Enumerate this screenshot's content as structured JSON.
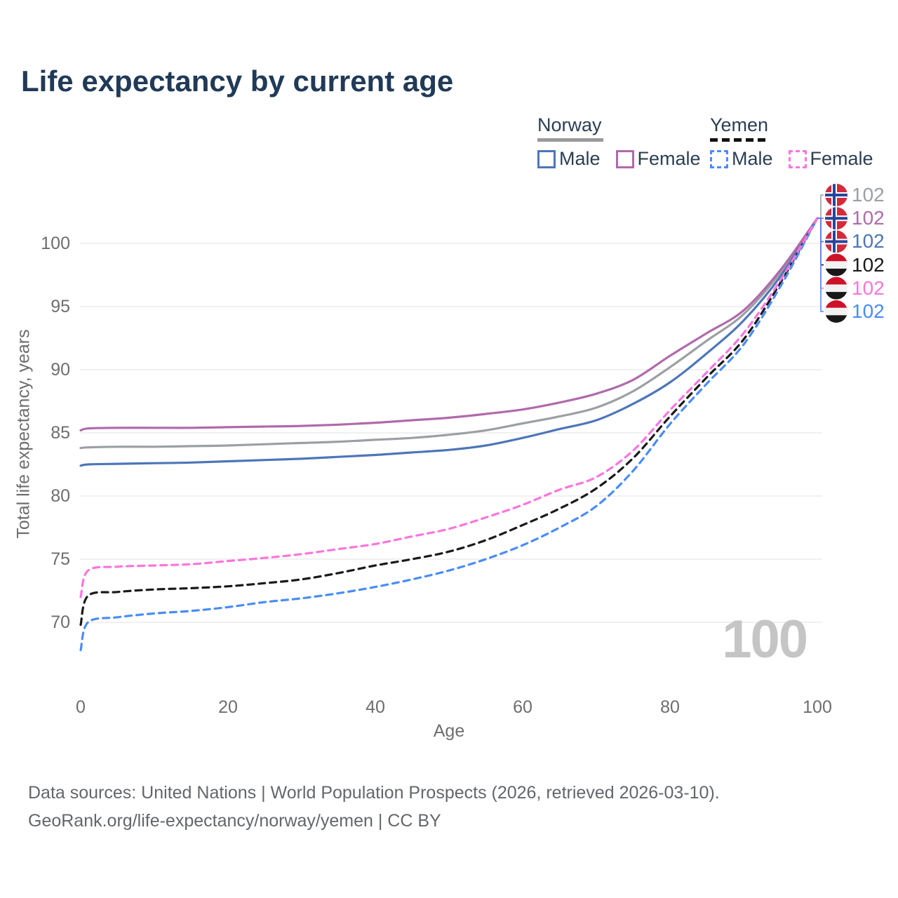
{
  "title": "Life expectancy by current age",
  "watermark": "100",
  "legend": {
    "groups": [
      {
        "name": "Norway",
        "style": "solid",
        "items": [
          {
            "label": "Male",
            "color": "#4d76b8",
            "dashed": false
          },
          {
            "label": "Female",
            "color": "#b06aab",
            "dashed": false
          }
        ]
      },
      {
        "name": "Yemen",
        "style": "dashed",
        "items": [
          {
            "label": "Male",
            "color": "#4a8cf7",
            "dashed": true
          },
          {
            "label": "Female",
            "color": "#fc75dc",
            "dashed": true
          }
        ]
      }
    ]
  },
  "sources": {
    "line1": "Data sources: United Nations | World Population Prospects (2026, retrieved 2026-03-10).",
    "line2": "GeoRank.org/life-expectancy/norway/yemen | CC BY"
  },
  "colors": {
    "title_text": "#203a57",
    "axis_text": "#6e6e6e",
    "gridline": "#ebebeb",
    "watermark": "#c5c5c5",
    "norway_flag_red": "#d32b3a",
    "norway_flag_blue": "#27469b",
    "yemen_flag_red": "#ce1126",
    "yemen_flag_white": "#f2f2f2",
    "yemen_flag_black": "#181818"
  },
  "chart_data": {
    "type": "line",
    "title": "Life expectancy by current age",
    "xlabel": "Age",
    "ylabel": "Total life expectancy, years",
    "xlim": [
      0,
      100
    ],
    "ylim": [
      67,
      103
    ],
    "xticks": [
      0,
      20,
      40,
      60,
      80,
      100
    ],
    "yticks": [
      70,
      75,
      80,
      85,
      90,
      95,
      100
    ],
    "grid": "horizontal-only",
    "legend_position": "top-right",
    "series": [
      {
        "name": "Norway – Total",
        "key": "norway-total",
        "color": "#9c9fa3",
        "dashed": false,
        "points": [
          [
            0,
            83.8
          ],
          [
            1,
            83.85
          ],
          [
            5,
            83.9
          ],
          [
            10,
            83.9
          ],
          [
            15,
            83.95
          ],
          [
            20,
            84.0
          ],
          [
            25,
            84.1
          ],
          [
            30,
            84.2
          ],
          [
            35,
            84.3
          ],
          [
            40,
            84.45
          ],
          [
            45,
            84.6
          ],
          [
            50,
            84.85
          ],
          [
            55,
            85.2
          ],
          [
            60,
            85.75
          ],
          [
            65,
            86.3
          ],
          [
            70,
            87.0
          ],
          [
            75,
            88.3
          ],
          [
            80,
            90.2
          ],
          [
            85,
            92.3
          ],
          [
            90,
            94.4
          ],
          [
            95,
            97.7
          ],
          [
            100,
            102
          ]
        ]
      },
      {
        "name": "Norway – Male",
        "key": "norway-male",
        "color": "#4d76b8",
        "dashed": false,
        "points": [
          [
            0,
            82.4
          ],
          [
            1,
            82.5
          ],
          [
            5,
            82.55
          ],
          [
            10,
            82.6
          ],
          [
            15,
            82.65
          ],
          [
            20,
            82.75
          ],
          [
            25,
            82.85
          ],
          [
            30,
            82.95
          ],
          [
            35,
            83.1
          ],
          [
            40,
            83.25
          ],
          [
            45,
            83.45
          ],
          [
            50,
            83.65
          ],
          [
            55,
            84.0
          ],
          [
            60,
            84.6
          ],
          [
            65,
            85.3
          ],
          [
            70,
            86.0
          ],
          [
            75,
            87.3
          ],
          [
            80,
            89.0
          ],
          [
            85,
            91.3
          ],
          [
            90,
            93.9
          ],
          [
            95,
            97.4
          ],
          [
            100,
            102
          ]
        ]
      },
      {
        "name": "Norway – Female",
        "key": "norway-female",
        "color": "#b06aab",
        "dashed": false,
        "points": [
          [
            0,
            85.2
          ],
          [
            1,
            85.35
          ],
          [
            5,
            85.4
          ],
          [
            10,
            85.4
          ],
          [
            15,
            85.4
          ],
          [
            20,
            85.45
          ],
          [
            25,
            85.5
          ],
          [
            30,
            85.55
          ],
          [
            35,
            85.65
          ],
          [
            40,
            85.8
          ],
          [
            45,
            86.0
          ],
          [
            50,
            86.2
          ],
          [
            55,
            86.5
          ],
          [
            60,
            86.85
          ],
          [
            65,
            87.4
          ],
          [
            70,
            88.1
          ],
          [
            75,
            89.2
          ],
          [
            80,
            91.1
          ],
          [
            85,
            92.9
          ],
          [
            90,
            94.7
          ],
          [
            95,
            97.9
          ],
          [
            100,
            102
          ]
        ]
      },
      {
        "name": "Yemen – Total",
        "key": "yemen-total",
        "color": "#1a1a1a",
        "dashed": true,
        "points": [
          [
            0,
            69.8
          ],
          [
            1,
            72.1
          ],
          [
            5,
            72.4
          ],
          [
            10,
            72.6
          ],
          [
            15,
            72.7
          ],
          [
            20,
            72.85
          ],
          [
            25,
            73.1
          ],
          [
            30,
            73.4
          ],
          [
            35,
            73.9
          ],
          [
            40,
            74.5
          ],
          [
            45,
            75.0
          ],
          [
            50,
            75.6
          ],
          [
            55,
            76.5
          ],
          [
            60,
            77.7
          ],
          [
            65,
            79.0
          ],
          [
            70,
            80.6
          ],
          [
            75,
            83.0
          ],
          [
            80,
            86.3
          ],
          [
            85,
            89.4
          ],
          [
            90,
            92.4
          ],
          [
            95,
            96.9
          ],
          [
            100,
            102
          ]
        ]
      },
      {
        "name": "Yemen – Male",
        "key": "yemen-male",
        "color": "#4a8cf7",
        "dashed": true,
        "points": [
          [
            0,
            67.8
          ],
          [
            1,
            70.0
          ],
          [
            5,
            70.4
          ],
          [
            10,
            70.7
          ],
          [
            15,
            70.9
          ],
          [
            20,
            71.2
          ],
          [
            25,
            71.6
          ],
          [
            30,
            71.9
          ],
          [
            35,
            72.3
          ],
          [
            40,
            72.8
          ],
          [
            45,
            73.4
          ],
          [
            50,
            74.1
          ],
          [
            55,
            75.0
          ],
          [
            60,
            76.1
          ],
          [
            65,
            77.5
          ],
          [
            70,
            79.2
          ],
          [
            75,
            82.0
          ],
          [
            80,
            85.7
          ],
          [
            85,
            88.9
          ],
          [
            90,
            92.0
          ],
          [
            95,
            96.6
          ],
          [
            100,
            102
          ]
        ]
      },
      {
        "name": "Yemen – Female",
        "key": "yemen-female",
        "color": "#fc75dc",
        "dashed": true,
        "points": [
          [
            0,
            72.0
          ],
          [
            1,
            74.1
          ],
          [
            5,
            74.4
          ],
          [
            10,
            74.5
          ],
          [
            15,
            74.6
          ],
          [
            20,
            74.85
          ],
          [
            25,
            75.1
          ],
          [
            30,
            75.4
          ],
          [
            35,
            75.8
          ],
          [
            40,
            76.2
          ],
          [
            45,
            76.8
          ],
          [
            50,
            77.4
          ],
          [
            55,
            78.3
          ],
          [
            60,
            79.3
          ],
          [
            65,
            80.5
          ],
          [
            70,
            81.5
          ],
          [
            75,
            83.6
          ],
          [
            80,
            86.8
          ],
          [
            85,
            89.8
          ],
          [
            90,
            92.9
          ],
          [
            95,
            97.1
          ],
          [
            100,
            102
          ]
        ]
      }
    ],
    "end_labels": [
      {
        "name": "norway-total",
        "flag": "norway",
        "color": "#9aa0a6",
        "value": "102"
      },
      {
        "name": "norway-female",
        "flag": "norway",
        "color": "#b06aab",
        "value": "102"
      },
      {
        "name": "norway-male",
        "flag": "norway",
        "color": "#4d76b8",
        "value": "102"
      },
      {
        "name": "yemen-total",
        "flag": "yemen",
        "color": "#1a1a1a",
        "value": "102"
      },
      {
        "name": "yemen-female",
        "flag": "yemen",
        "color": "#fc75dc",
        "value": "102"
      },
      {
        "name": "yemen-male",
        "flag": "yemen",
        "color": "#4a8cf7",
        "value": "102"
      }
    ]
  }
}
